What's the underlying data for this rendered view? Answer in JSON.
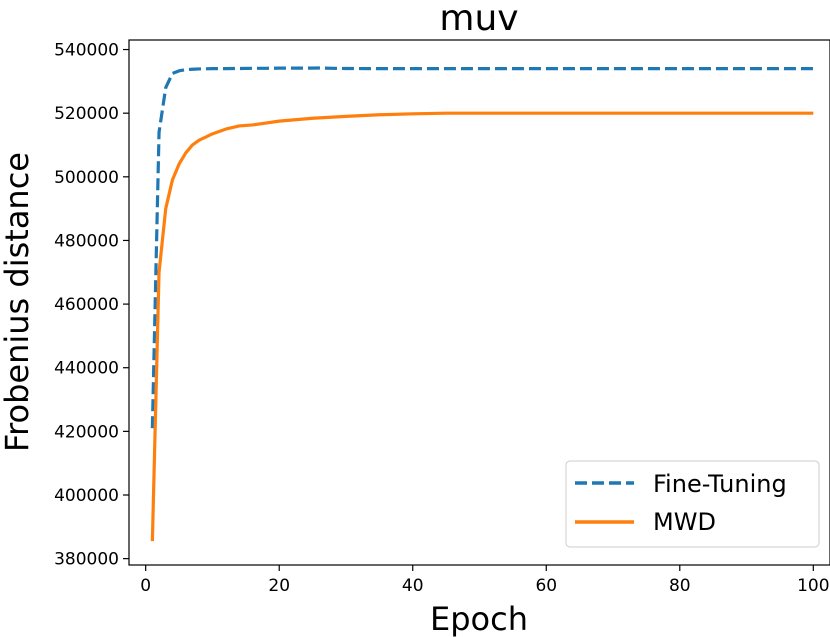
{
  "chart_data": {
    "type": "line",
    "title": "muv",
    "xlabel": "Epoch",
    "ylabel": "Frobenius distance",
    "xlim": [
      -2.5,
      102.5
    ],
    "ylim": [
      378000,
      543000
    ],
    "x_ticks": [
      0,
      20,
      40,
      60,
      80,
      100
    ],
    "x_tick_labels": [
      "0",
      "20",
      "40",
      "60",
      "80",
      "100"
    ],
    "y_ticks": [
      380000,
      400000,
      420000,
      440000,
      460000,
      480000,
      500000,
      520000,
      540000
    ],
    "y_tick_labels": [
      "380000",
      "400000",
      "420000",
      "440000",
      "460000",
      "480000",
      "500000",
      "520000",
      "540000"
    ],
    "grid": false,
    "legend_position": "lower-right",
    "series": [
      {
        "name": "Fine-Tuning",
        "color": "#1f77b4",
        "line_style": "dashed",
        "x": [
          1,
          2,
          3,
          4,
          5,
          6,
          7,
          8,
          10,
          12,
          14,
          16,
          18,
          20,
          22,
          24,
          26,
          28,
          30,
          35,
          40,
          50,
          60,
          70,
          80,
          90,
          100
        ],
        "y": [
          421000,
          514000,
          528000,
          532500,
          533300,
          533700,
          533800,
          533900,
          534000,
          534000,
          534050,
          534100,
          534100,
          534150,
          534150,
          534150,
          534200,
          534100,
          534050,
          534000,
          534000,
          534000,
          534000,
          534000,
          534000,
          534000,
          534000
        ]
      },
      {
        "name": "MWD",
        "color": "#ff7f0e",
        "line_style": "solid",
        "x": [
          1,
          2,
          3,
          4,
          5,
          6,
          7,
          8,
          9,
          10,
          12,
          14,
          16,
          18,
          20,
          25,
          30,
          35,
          40,
          45,
          50,
          60,
          70,
          80,
          90,
          100
        ],
        "y": [
          385500,
          470000,
          490000,
          499000,
          504000,
          507500,
          510000,
          511500,
          512500,
          513500,
          515000,
          516000,
          516300,
          516900,
          517500,
          518400,
          519000,
          519500,
          519800,
          520000,
          520000,
          520000,
          520000,
          520000,
          520000,
          520000
        ]
      }
    ]
  }
}
